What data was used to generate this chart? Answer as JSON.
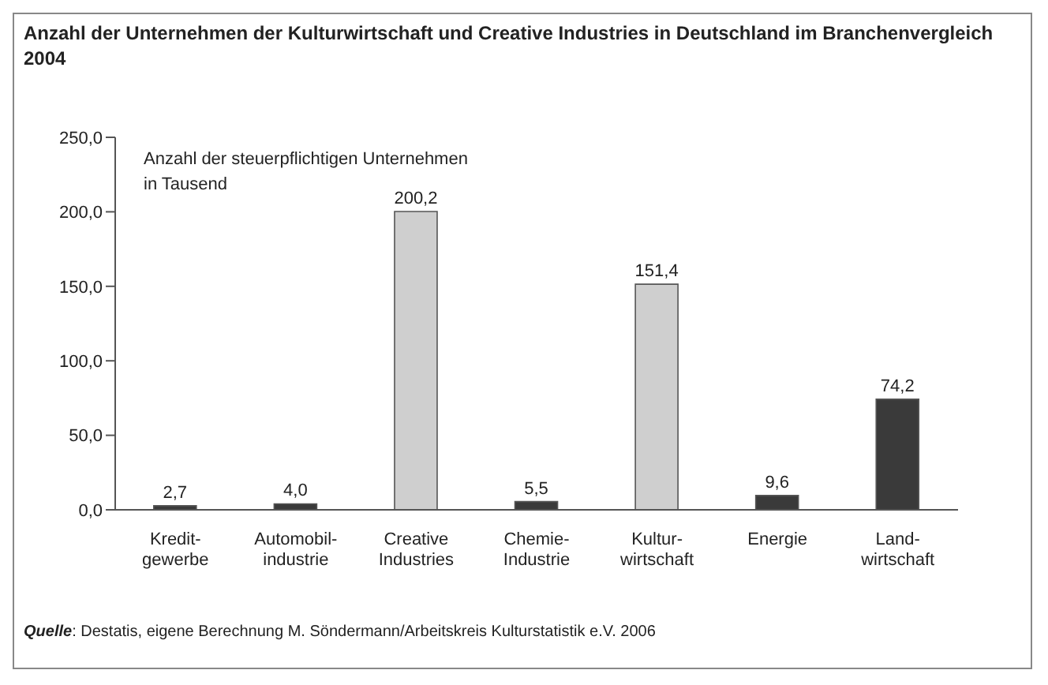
{
  "chart_data": {
    "type": "bar",
    "title": "Anzahl der Unternehmen der Kulturwirtschaft und Creative Industries in Deutschland im Branchenvergleich 2004",
    "categories": [
      "Kredit-\ngewerbe",
      "Automobil-\nindustrie",
      "Creative\nIndustries",
      "Chemie-\nIndustrie",
      "Kultur-\nwirtschaft",
      "Energie",
      "Land-\nwirtschaft"
    ],
    "values": [
      2.7,
      4.0,
      200.2,
      5.5,
      151.4,
      9.6,
      74.2
    ],
    "colors": [
      "#3a3a3a",
      "#3a3a3a",
      "#cfcfcf",
      "#3a3a3a",
      "#cfcfcf",
      "#3a3a3a",
      "#3a3a3a"
    ],
    "value_labels": [
      "2,7",
      "4,0",
      "200,2",
      "5,5",
      "151,4",
      "9,6",
      "74,2"
    ],
    "ylim": [
      0,
      250
    ],
    "yticks": [
      {
        "value": 0,
        "label": "0,0"
      },
      {
        "value": 50,
        "label": "50,0"
      },
      {
        "value": 100,
        "label": "100,0"
      },
      {
        "value": 150,
        "label": "150,0"
      },
      {
        "value": 200,
        "label": "200,0"
      },
      {
        "value": 250,
        "label": "250,0"
      }
    ],
    "grid": false,
    "annotations": [
      "Anzahl der steuerpflichtigen Unternehmen\nin Tausend",
      "Quelle: Destatis, eigene Berechnung M. Söndermann/Arbeitskreis Kulturstatistik e.V. 2006"
    ]
  }
}
